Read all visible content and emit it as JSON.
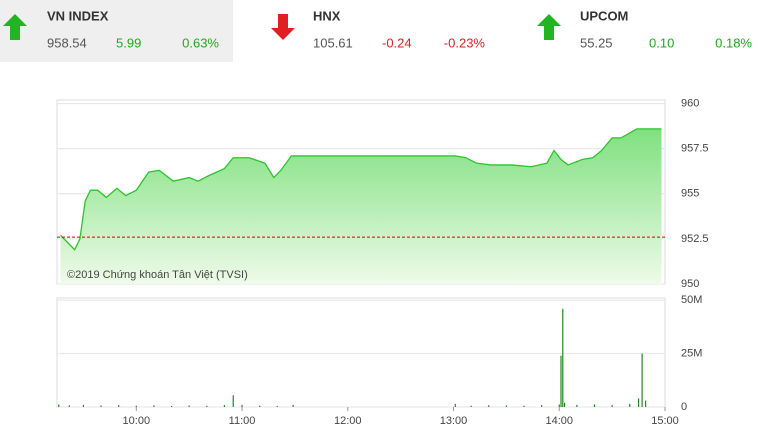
{
  "indices": [
    {
      "name": "VN INDEX",
      "value": "958.54",
      "change": "5.99",
      "percent": "0.63%",
      "direction": "up"
    },
    {
      "name": "HNX",
      "value": "105.61",
      "change": "-0.24",
      "percent": "-0.23%",
      "direction": "down"
    },
    {
      "name": "UPCOM",
      "value": "55.25",
      "change": "0.10",
      "percent": "0.18%",
      "direction": "up"
    }
  ],
  "chart_data": [
    {
      "type": "line",
      "annotation": "©2019 Chứng khoán Tân Việt (TVSI)",
      "x": [
        "09:17",
        "09:21",
        "09:25",
        "09:28",
        "09:31",
        "09:34",
        "09:38",
        "09:43",
        "09:49",
        "09:54",
        "10:00",
        "10:07",
        "10:13",
        "10:21",
        "10:30",
        "10:35",
        "10:41",
        "10:50",
        "10:55",
        "11:04",
        "11:13",
        "11:18",
        "11:22",
        "11:28",
        "12:01",
        "12:35",
        "13:01",
        "13:07",
        "13:13",
        "13:21",
        "13:33",
        "13:44",
        "13:53",
        "13:57",
        "14:01",
        "14:05",
        "14:13",
        "14:19",
        "14:24",
        "14:30",
        "14:35",
        "14:44",
        "14:58"
      ],
      "series": [
        {
          "color": "#2ec42e",
          "values": [
            952.7,
            952.3,
            951.9,
            952.5,
            954.6,
            955.2,
            955.2,
            954.8,
            955.3,
            954.9,
            955.2,
            956.2,
            956.3,
            955.7,
            955.9,
            955.7,
            956.0,
            956.4,
            957.0,
            957.0,
            956.7,
            955.9,
            956.3,
            957.1,
            957.1,
            957.1,
            957.1,
            957.0,
            956.7,
            956.6,
            956.6,
            956.5,
            956.7,
            957.4,
            956.9,
            956.6,
            956.9,
            957.0,
            957.4,
            958.1,
            958.1,
            958.6,
            958.6
          ]
        }
      ],
      "reference": 952.6,
      "reference_color": "#cc0000",
      "xlim": [
        "09:15",
        "15:00"
      ],
      "ylim": [
        950,
        960.2
      ],
      "yticks": [
        950,
        {
          "value": 952.5,
          "label": "952.5"
        },
        955,
        {
          "value": 957.5,
          "label": "957.5"
        },
        960
      ],
      "grid": true
    },
    {
      "type": "bar",
      "x": [
        "09:16",
        "09:22",
        "09:30",
        "09:40",
        "09:50",
        "10:00",
        "10:10",
        "10:20",
        "10:30",
        "10:40",
        "10:50",
        "10:55",
        "11:00",
        "11:10",
        "11:20",
        "11:29",
        "13:01",
        "13:10",
        "13:20",
        "13:30",
        "13:40",
        "13:50",
        "14:00",
        "14:01",
        "14:02",
        "14:03",
        "14:10",
        "14:20",
        "14:30",
        "14:40",
        "14:45",
        "14:47",
        "14:49"
      ],
      "values": [
        1200000,
        800000,
        1000000,
        700000,
        900000,
        600000,
        800000,
        500000,
        700000,
        600000,
        900000,
        5500000,
        1000000,
        600000,
        500000,
        1000000,
        1500000,
        600000,
        800000,
        700000,
        600000,
        900000,
        1200000,
        24000000,
        46000000,
        2000000,
        1000000,
        1200000,
        900000,
        1500000,
        4000000,
        25000000,
        3000000
      ],
      "color": "#1f8a1f",
      "xlim": [
        "09:15",
        "15:00"
      ],
      "ylim": [
        0,
        51000000
      ],
      "yticks": [
        0,
        {
          "value": 25000000,
          "label": "25M"
        },
        {
          "value": 50000000,
          "label": "50M"
        }
      ],
      "xticks": [
        "10:00",
        "11:00",
        "12:00",
        "13:00",
        "14:00",
        "15:00"
      ],
      "grid": true
    }
  ]
}
